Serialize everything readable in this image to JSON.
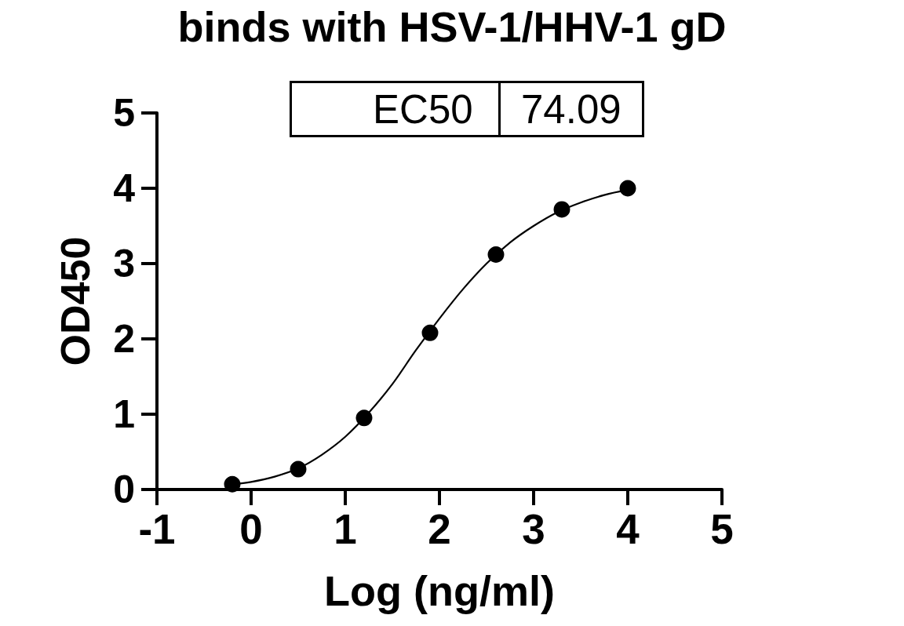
{
  "chart_data": {
    "type": "scatter",
    "title": "binds with HSV-1/HHV-1 gD",
    "xlabel": "Log (ng/ml)",
    "ylabel": "OD450",
    "annotations": [
      "EC50",
      "74.09"
    ],
    "series": [
      {
        "type": "scatter",
        "color": "#000000",
        "marker": "circle",
        "x": [
          -0.2,
          0.5,
          1.2,
          1.9,
          2.6,
          3.3,
          4.0
        ],
        "values": [
          0.07,
          0.27,
          0.95,
          2.08,
          3.12,
          3.72,
          4.0
        ]
      },
      {
        "type": "line",
        "color": "#000000",
        "marker": "none",
        "x": [
          -0.2,
          0,
          0.25,
          0.5,
          0.75,
          1.0,
          1.25,
          1.5,
          1.75,
          2.0,
          2.25,
          2.5,
          2.75,
          3.0,
          3.25,
          3.5,
          3.75,
          4.0
        ],
        "values": [
          0.07,
          0.1,
          0.17,
          0.28,
          0.46,
          0.7,
          1.02,
          1.4,
          1.85,
          2.27,
          2.66,
          3.0,
          3.28,
          3.5,
          3.68,
          3.81,
          3.91,
          3.98
        ]
      }
    ],
    "xlim": [
      -1,
      5
    ],
    "xticks": [
      -1,
      0,
      1,
      2,
      3,
      4,
      5
    ],
    "ylim": [
      0,
      5
    ],
    "yticks": [
      0,
      1,
      2,
      3,
      4,
      5
    ],
    "grid": false,
    "line_style": "solid"
  }
}
